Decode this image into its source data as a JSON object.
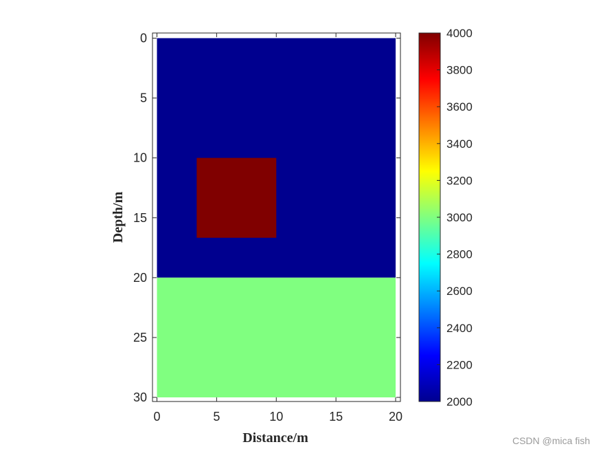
{
  "chart_data": {
    "type": "heatmap",
    "xlabel": "Distance/m",
    "ylabel": "Depth/m",
    "xlim": [
      0,
      20
    ],
    "ylim": [
      0,
      30
    ],
    "y_direction": "reversed",
    "xticks": [
      0,
      5,
      10,
      15,
      20
    ],
    "yticks": [
      0,
      5,
      10,
      15,
      20,
      25,
      30
    ],
    "colormap": "jet",
    "colorbar": {
      "range": [
        2000,
        4000
      ],
      "ticks": [
        2000,
        2200,
        2400,
        2600,
        2800,
        3000,
        3200,
        3400,
        3600,
        3800,
        4000
      ],
      "placement": "right"
    },
    "regions": [
      {
        "label": "upper layer",
        "x": [
          0,
          20
        ],
        "y": [
          0,
          20
        ],
        "value": 2000,
        "color": "#00008f"
      },
      {
        "label": "lower layer",
        "x": [
          0,
          20
        ],
        "y": [
          20,
          30
        ],
        "value": 3000,
        "color": "#80ff80"
      },
      {
        "label": "anomaly block",
        "x": [
          3.33,
          10
        ],
        "y": [
          10,
          16.67
        ],
        "value": 4000,
        "color": "#800000"
      }
    ]
  },
  "watermark": "CSDN @mica fish"
}
